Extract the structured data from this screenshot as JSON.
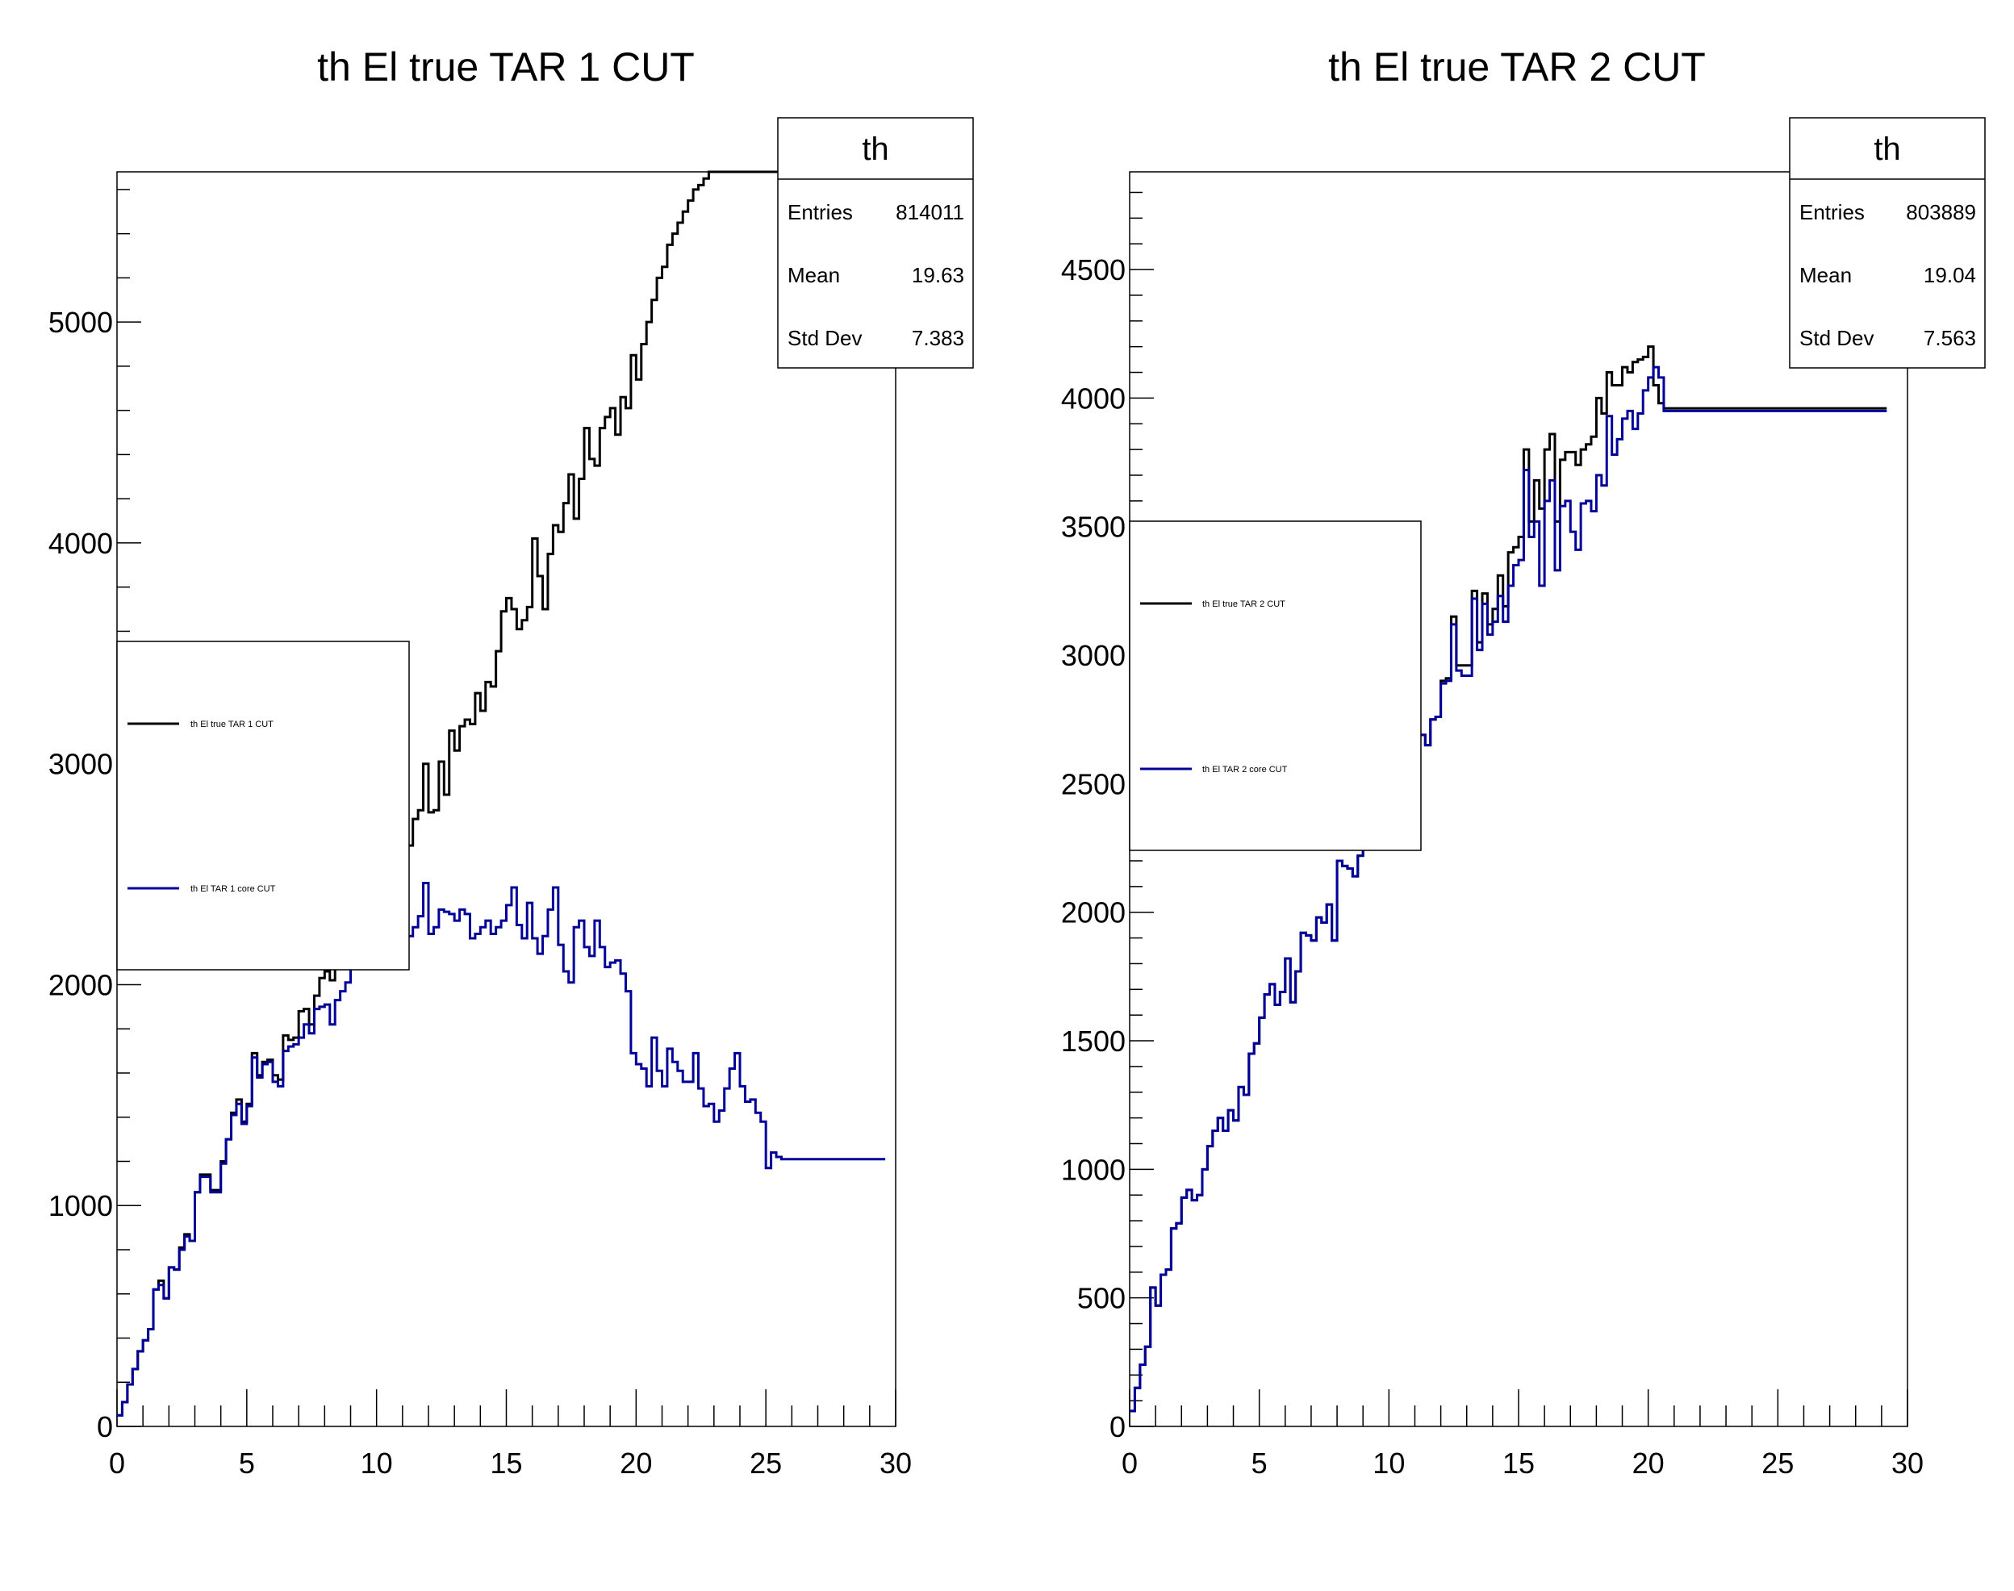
{
  "chart_data": [
    {
      "type": "step",
      "title": "th El true TAR 1 CUT",
      "xlabel": "",
      "ylabel": "",
      "xlim": [
        0,
        30
      ],
      "ylim": [
        0,
        5680
      ],
      "x_ticks": [
        "0",
        "5",
        "10",
        "15",
        "20",
        "25",
        "30"
      ],
      "y_ticks": [
        "0",
        "1000",
        "2000",
        "3000",
        "4000",
        "5000"
      ],
      "stats": {
        "title": "th",
        "rows": [
          {
            "label": "Entries",
            "value": "814011"
          },
          {
            "label": "Mean",
            "value": "19.63"
          },
          {
            "label": "Std Dev",
            "value": "7.383"
          }
        ]
      },
      "legend": [
        {
          "label": "th El true TAR 1 CUT",
          "color": "#000000"
        },
        {
          "label": "th El TAR 1 core CUT",
          "color": "#000099"
        }
      ],
      "bin_width": 0.2,
      "series": [
        {
          "name": "th El true TAR 1 CUT",
          "color": "#000000",
          "values": [
            50,
            110,
            190,
            260,
            340,
            390,
            440,
            620,
            660,
            580,
            720,
            710,
            810,
            870,
            840,
            1060,
            1140,
            1140,
            1070,
            1070,
            1200,
            1300,
            1420,
            1480,
            1380,
            1460,
            1690,
            1590,
            1650,
            1660,
            1590,
            1570,
            1770,
            1750,
            1760,
            1880,
            1890,
            1820,
            1950,
            2030,
            2060,
            2020,
            2110,
            2140,
            2160,
            2230,
            2280,
            2400,
            2370,
            2590,
            2520,
            2530,
            2550,
            2560,
            2460,
            2650,
            2630,
            2750,
            2790,
            3000,
            2780,
            2790,
            3010,
            2860,
            3150,
            3060,
            3170,
            3200,
            3180,
            3320,
            3240,
            3370,
            3350,
            3510,
            3690,
            3750,
            3700,
            3610,
            3650,
            3710,
            4020,
            3850,
            3700,
            3950,
            4080,
            4050,
            4180,
            4310,
            4110,
            4290,
            4520,
            4380,
            4350,
            4520,
            4570,
            4610,
            4490,
            4660,
            4610,
            4850,
            4740,
            4900,
            5000,
            5100,
            5200,
            5250,
            5350,
            5400,
            5450,
            5500,
            5550,
            5600,
            5620,
            5650,
            5680,
            5680,
            5680,
            5680,
            5680,
            5680,
            5680,
            5680,
            5680,
            5680,
            5680,
            5680,
            5680,
            5680,
            5680,
            5680,
            5680,
            5680,
            5680,
            5680,
            5680,
            5680,
            5680,
            5680,
            5680,
            5680,
            5680,
            5680,
            5680,
            5680,
            5680,
            5680,
            5680,
            5680,
            5680,
            5680
          ]
        },
        {
          "name": "th El TAR 1 core CUT",
          "color": "#000099",
          "values": [
            50,
            110,
            190,
            260,
            340,
            390,
            440,
            620,
            640,
            580,
            720,
            710,
            800,
            860,
            840,
            1060,
            1130,
            1130,
            1060,
            1060,
            1190,
            1300,
            1410,
            1460,
            1370,
            1450,
            1670,
            1580,
            1640,
            1650,
            1560,
            1540,
            1700,
            1720,
            1730,
            1760,
            1820,
            1780,
            1890,
            1900,
            1910,
            1820,
            1930,
            1970,
            2010,
            2080,
            2120,
            2210,
            2130,
            2300,
            2170,
            2240,
            2240,
            2200,
            2120,
            2270,
            2220,
            2260,
            2310,
            2460,
            2230,
            2260,
            2340,
            2330,
            2320,
            2290,
            2340,
            2320,
            2210,
            2230,
            2260,
            2290,
            2230,
            2260,
            2290,
            2360,
            2440,
            2270,
            2210,
            2370,
            2210,
            2140,
            2220,
            2340,
            2440,
            2180,
            2060,
            2010,
            2260,
            2290,
            2170,
            2130,
            2290,
            2170,
            2080,
            2100,
            2110,
            2050,
            1970,
            1690,
            1640,
            1620,
            1540,
            1760,
            1610,
            1540,
            1710,
            1650,
            1610,
            1560,
            1560,
            1690,
            1530,
            1450,
            1460,
            1380,
            1430,
            1530,
            1620,
            1690,
            1540,
            1470,
            1480,
            1420,
            1380,
            1170,
            1240,
            1220,
            1210,
            1210,
            1210,
            1210,
            1210,
            1210,
            1210,
            1210,
            1210,
            1210,
            1210,
            1210,
            1210,
            1210,
            1210,
            1210,
            1210,
            1210,
            1210,
            1210
          ]
        }
      ]
    },
    {
      "type": "step",
      "title": "th El true TAR 2 CUT",
      "xlabel": "",
      "ylabel": "",
      "xlim": [
        0,
        30
      ],
      "ylim": [
        0,
        4880
      ],
      "x_ticks": [
        "0",
        "5",
        "10",
        "15",
        "20",
        "25",
        "30"
      ],
      "y_ticks": [
        "0",
        "500",
        "1000",
        "1500",
        "2000",
        "2500",
        "3000",
        "3500",
        "4000",
        "4500"
      ],
      "stats": {
        "title": "th",
        "rows": [
          {
            "label": "Entries",
            "value": "803889"
          },
          {
            "label": "Mean",
            "value": "19.04"
          },
          {
            "label": "Std Dev",
            "value": "7.563"
          }
        ]
      },
      "legend": [
        {
          "label": "th El true TAR 2 CUT",
          "color": "#000000"
        },
        {
          "label": "th El TAR 2 core CUT",
          "color": "#000099"
        }
      ],
      "bin_width": 0.2,
      "series": [
        {
          "name": "th El true TAR 2 CUT",
          "color": "#000000",
          "values": [
            60,
            150,
            240,
            310,
            540,
            470,
            590,
            610,
            770,
            790,
            890,
            920,
            880,
            900,
            1000,
            1090,
            1150,
            1200,
            1150,
            1230,
            1190,
            1320,
            1290,
            1450,
            1490,
            1590,
            1680,
            1720,
            1640,
            1690,
            1820,
            1650,
            1770,
            1920,
            1910,
            1890,
            1980,
            1960,
            2030,
            1890,
            2200,
            2180,
            2170,
            2140,
            2220,
            2270,
            2250,
            2300,
            2510,
            2510,
            2330,
            2370,
            2380,
            2600,
            2540,
            2460,
            2690,
            2650,
            2750,
            2760,
            2900,
            2910,
            3150,
            2960,
            2960,
            2960,
            3250,
            3050,
            3240,
            3120,
            3180,
            3310,
            3190,
            3400,
            3420,
            3460,
            3800,
            3520,
            3680,
            3570,
            3800,
            3860,
            3520,
            3760,
            3790,
            3790,
            3740,
            3800,
            3820,
            3850,
            4000,
            3940,
            4100,
            4050,
            4050,
            4120,
            4100,
            4140,
            4150,
            4160,
            4200,
            4050,
            3980,
            3960,
            3960,
            3960,
            3960,
            3960,
            3960,
            3960,
            3960,
            3960,
            3960,
            3960,
            3960,
            3960,
            3960,
            3960,
            3960,
            3960,
            3960,
            3960,
            3960,
            3960,
            3960,
            3960,
            3960,
            3960,
            3960,
            3960,
            3960,
            3960,
            3960,
            3960,
            3960,
            3960,
            3960,
            3960,
            3960,
            3960,
            3960,
            3960,
            3960,
            3960,
            3960,
            3960
          ]
        },
        {
          "name": "th El TAR 2 core CUT",
          "color": "#000099",
          "values": [
            60,
            150,
            240,
            310,
            540,
            470,
            590,
            610,
            770,
            790,
            890,
            920,
            880,
            900,
            1000,
            1090,
            1150,
            1200,
            1150,
            1230,
            1190,
            1320,
            1290,
            1450,
            1490,
            1590,
            1680,
            1720,
            1640,
            1690,
            1820,
            1650,
            1770,
            1920,
            1910,
            1890,
            1980,
            1960,
            2030,
            1890,
            2200,
            2180,
            2170,
            2140,
            2220,
            2270,
            2250,
            2300,
            2510,
            2510,
            2330,
            2370,
            2380,
            2600,
            2540,
            2460,
            2690,
            2650,
            2750,
            2760,
            2890,
            2900,
            3120,
            2940,
            2920,
            2920,
            3220,
            3020,
            3200,
            3080,
            3130,
            3230,
            3130,
            3270,
            3350,
            3370,
            3720,
            3460,
            3520,
            3270,
            3600,
            3680,
            3330,
            3580,
            3600,
            3480,
            3410,
            3590,
            3600,
            3560,
            3700,
            3660,
            3930,
            3780,
            3840,
            3920,
            3950,
            3880,
            3940,
            4030,
            4080,
            4120,
            4080,
            3950,
            3950,
            3950,
            3950,
            3950,
            3950,
            3950,
            3950,
            3950,
            3950,
            3950,
            3950,
            3950,
            3950,
            3950,
            3950,
            3950,
            3950,
            3950,
            3950,
            3950,
            3950,
            3950,
            3950,
            3950,
            3950,
            3950,
            3950,
            3950,
            3950,
            3950,
            3950,
            3950,
            3950,
            3950,
            3950,
            3950,
            3950,
            3950,
            3950,
            3950,
            3950,
            3950
          ]
        }
      ]
    }
  ]
}
